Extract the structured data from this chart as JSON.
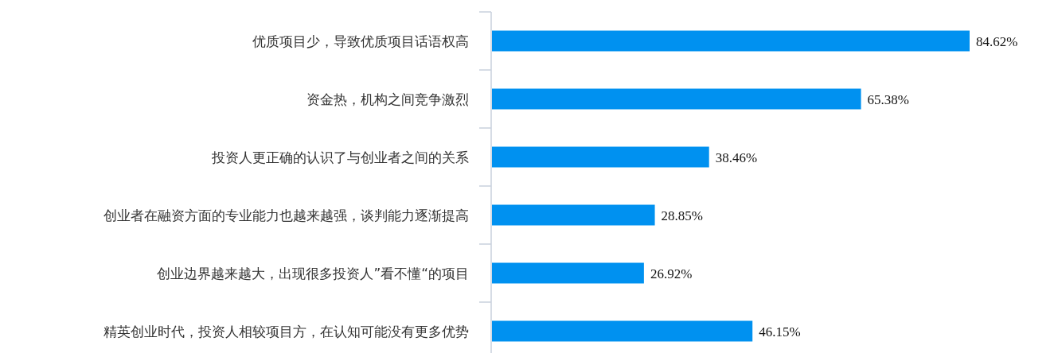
{
  "chart_data": {
    "type": "bar",
    "orientation": "horizontal",
    "categories": [
      "优质项目少，导致优质项目话语权高",
      "资金热，机构之间竞争激烈",
      "投资人更正确的认识了与创业者之间的关系",
      "创业者在融资方面的专业能力也越来越强，谈判能力逐渐提高",
      "创业边界越来越大，出现很多投资人”看不懂“的项目",
      "精英创业时代，投资人相较项目方，在认知可能没有更多优势"
    ],
    "values": [
      84.62,
      65.38,
      38.46,
      28.85,
      26.92,
      46.15
    ],
    "value_labels": [
      "84.62%",
      "65.38%",
      "38.46%",
      "28.85%",
      "26.92%",
      "46.15%"
    ],
    "color": "#0091f0"
  }
}
